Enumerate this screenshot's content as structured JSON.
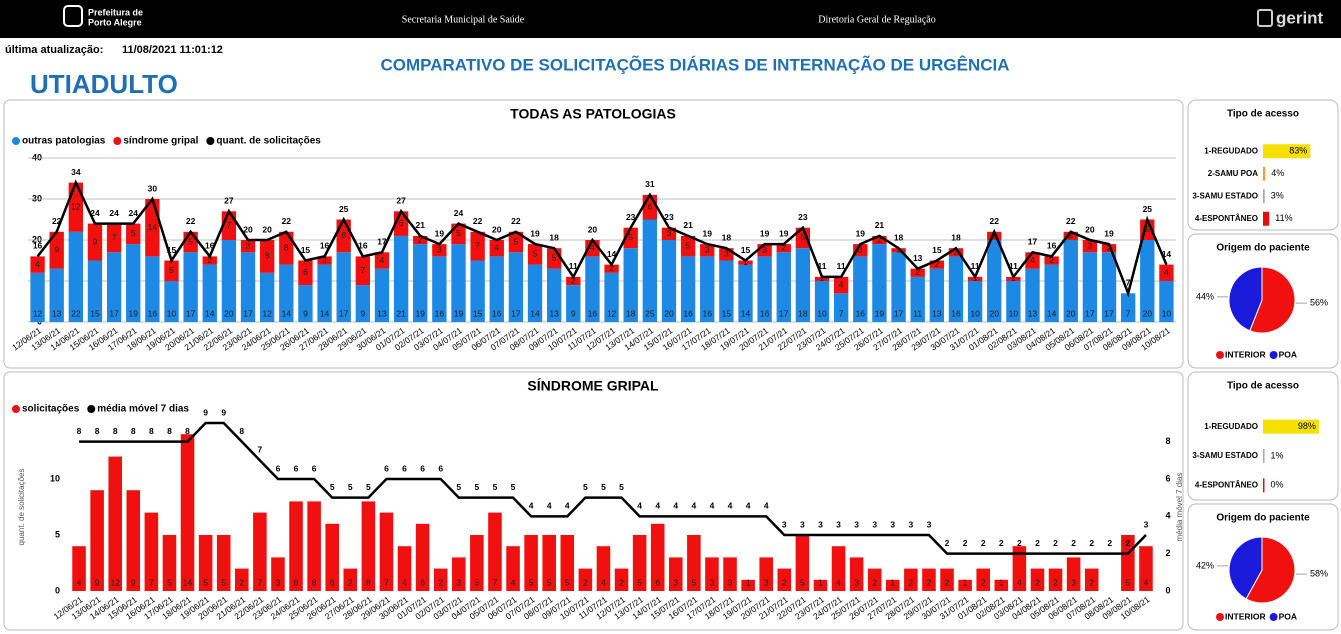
{
  "header": {
    "logo_lines": [
      "Prefeitura de",
      "Porto Alegre"
    ],
    "secretaria": "Secretaria Municipal de Saúde",
    "diretoria": "Diretoria Geral de Regulação",
    "brand": "gerint"
  },
  "update": {
    "label": "última atualização:",
    "value": "11/08/2021 11:01:12"
  },
  "title": "COMPARATIVO DE SOLICITAÇÕES DIÁRIAS DE INTERNAÇÃO DE URGÊNCIA",
  "unit": "UTIADULTO",
  "chart_data": [
    {
      "type": "bar",
      "title": "TODAS AS PATOLOGIAS",
      "stacked": true,
      "grid": true,
      "categories": [
        "12/06/21",
        "13/06/21",
        "14/06/21",
        "15/06/21",
        "16/06/21",
        "17/06/21",
        "18/06/21",
        "19/06/21",
        "20/06/21",
        "21/06/21",
        "22/06/21",
        "23/06/21",
        "24/06/21",
        "25/06/21",
        "26/06/21",
        "27/06/21",
        "28/06/21",
        "29/06/21",
        "30/06/21",
        "01/07/21",
        "02/07/21",
        "03/07/21",
        "04/07/21",
        "05/07/21",
        "06/07/21",
        "07/07/21",
        "08/07/21",
        "09/07/21",
        "10/07/21",
        "11/07/21",
        "12/07/21",
        "13/07/21",
        "14/07/21",
        "15/07/21",
        "16/07/21",
        "17/07/21",
        "18/07/21",
        "19/07/21",
        "20/07/21",
        "21/07/21",
        "22/07/21",
        "23/07/21",
        "24/07/21",
        "25/07/21",
        "26/07/21",
        "27/07/21",
        "28/07/21",
        "29/07/21",
        "30/07/21",
        "31/07/21",
        "01/08/21",
        "02/08/21",
        "03/08/21",
        "04/08/21",
        "05/08/21",
        "06/08/21",
        "07/08/21",
        "08/08/21",
        "09/08/21",
        "10/08/21"
      ],
      "series": [
        {
          "name": "outras patologias",
          "color": "#1e88e5",
          "type": "bar",
          "values": [
            12,
            13,
            22,
            15,
            17,
            19,
            16,
            10,
            17,
            14,
            20,
            17,
            12,
            14,
            9,
            14,
            17,
            9,
            13,
            21,
            19,
            16,
            19,
            15,
            16,
            17,
            14,
            13,
            9,
            16,
            12,
            18,
            25,
            20,
            16,
            16,
            15,
            14,
            16,
            17,
            18,
            10,
            7,
            16,
            19,
            17,
            11,
            13,
            16,
            10,
            20,
            10,
            13,
            14,
            20,
            17,
            17,
            7,
            20,
            10
          ]
        },
        {
          "name": "síndrome gripal",
          "color": "#f01010",
          "type": "bar",
          "values": [
            4,
            9,
            12,
            9,
            7,
            5,
            14,
            5,
            5,
            2,
            7,
            3,
            8,
            8,
            6,
            2,
            8,
            7,
            4,
            6,
            2,
            3,
            5,
            7,
            4,
            5,
            5,
            5,
            2,
            4,
            2,
            5,
            6,
            3,
            5,
            3,
            3,
            1,
            3,
            2,
            5,
            1,
            4,
            3,
            2,
            1,
            2,
            2,
            2,
            1,
            2,
            1,
            4,
            2,
            2,
            3,
            2,
            0,
            5,
            4
          ]
        },
        {
          "name": "quant. de solicitações",
          "color": "#000000",
          "type": "line",
          "values": [
            16,
            22,
            34,
            24,
            24,
            24,
            30,
            15,
            22,
            16,
            27,
            20,
            20,
            22,
            15,
            16,
            25,
            16,
            17,
            27,
            21,
            19,
            24,
            22,
            20,
            22,
            19,
            18,
            11,
            20,
            14,
            23,
            31,
            23,
            21,
            19,
            18,
            15,
            19,
            19,
            23,
            11,
            11,
            19,
            21,
            18,
            13,
            15,
            18,
            11,
            22,
            11,
            17,
            16,
            22,
            20,
            19,
            7,
            25,
            14
          ]
        }
      ],
      "ylim": [
        0,
        40
      ],
      "yticks": [
        0,
        10,
        20,
        30,
        40
      ]
    },
    {
      "type": "bar",
      "title": "SÍNDROME GRIPAL",
      "y_label": "quant. de solicitações",
      "y2_label": "média móvel 7 dias",
      "categories": [
        "12/06/21",
        "13/06/21",
        "14/06/21",
        "15/06/21",
        "16/06/21",
        "17/06/21",
        "18/06/21",
        "19/06/21",
        "20/06/21",
        "21/06/21",
        "22/06/21",
        "23/06/21",
        "24/06/21",
        "25/06/21",
        "26/06/21",
        "27/06/21",
        "28/06/21",
        "29/06/21",
        "30/06/21",
        "01/07/21",
        "02/07/21",
        "03/07/21",
        "04/07/21",
        "05/07/21",
        "06/07/21",
        "07/07/21",
        "08/07/21",
        "09/07/21",
        "10/07/21",
        "11/07/21",
        "12/07/21",
        "13/07/21",
        "14/07/21",
        "15/07/21",
        "16/07/21",
        "17/07/21",
        "18/07/21",
        "19/07/21",
        "20/07/21",
        "21/07/21",
        "22/07/21",
        "23/07/21",
        "24/07/21",
        "25/07/21",
        "26/07/21",
        "27/07/21",
        "28/07/21",
        "29/07/21",
        "30/07/21",
        "31/07/21",
        "01/08/21",
        "02/08/21",
        "03/08/21",
        "04/08/21",
        "05/08/21",
        "06/08/21",
        "07/08/21",
        "08/08/21",
        "09/08/21",
        "10/08/21"
      ],
      "series": [
        {
          "name": "solicitações",
          "color": "#f01010",
          "type": "bar",
          "values": [
            4,
            9,
            12,
            9,
            7,
            5,
            14,
            5,
            5,
            2,
            7,
            3,
            8,
            8,
            6,
            2,
            8,
            7,
            4,
            6,
            2,
            3,
            5,
            7,
            4,
            5,
            5,
            5,
            2,
            4,
            2,
            5,
            6,
            3,
            5,
            3,
            3,
            1,
            3,
            2,
            5,
            1,
            4,
            3,
            2,
            1,
            2,
            2,
            2,
            1,
            2,
            1,
            4,
            2,
            2,
            3,
            2,
            0,
            5,
            4
          ]
        },
        {
          "name": "média móvel 7 dias",
          "color": "#000000",
          "type": "line",
          "axis": "y2",
          "values": [
            8,
            8,
            8,
            8,
            8,
            8,
            8,
            9,
            9,
            8,
            7,
            6,
            6,
            6,
            5,
            5,
            5,
            6,
            6,
            6,
            6,
            5,
            5,
            5,
            5,
            4,
            4,
            4,
            5,
            5,
            5,
            4,
            4,
            4,
            4,
            4,
            4,
            4,
            4,
            3,
            3,
            3,
            3,
            3,
            3,
            3,
            3,
            3,
            2,
            2,
            2,
            2,
            2,
            2,
            2,
            2,
            2,
            2,
            2,
            3
          ]
        }
      ],
      "ylim": [
        0,
        15
      ],
      "yticks": [
        0,
        5,
        10
      ],
      "y2lim": [
        0,
        9
      ],
      "y2ticks": [
        0,
        2,
        4,
        6,
        8
      ]
    },
    {
      "type": "hbar",
      "title": "Tipo de acesso",
      "categories": [
        "1-REGUDADO",
        "2-SAMU POA",
        "3-SAMU ESTADO",
        "4-ESPONTÂNEO"
      ],
      "values": [
        83,
        4,
        3,
        11
      ],
      "value_labels": [
        "83%",
        "4%",
        "3%",
        "11%"
      ],
      "colors": [
        "#f5e000",
        "#f0a030",
        "#a89ee0",
        "#e01010"
      ],
      "xlim": [
        0,
        100
      ]
    },
    {
      "type": "pie",
      "title": "Origem do paciente",
      "categories": [
        "INTERIOR",
        "POA"
      ],
      "values": [
        56,
        44
      ],
      "value_labels": [
        "56%",
        "44%"
      ],
      "colors": [
        "#f01010",
        "#1a1adb"
      ]
    },
    {
      "type": "hbar",
      "title": "Tipo de acesso",
      "categories": [
        "1-REGUDADO",
        "3-SAMU ESTADO",
        "4-ESPONTÂNEO"
      ],
      "values": [
        98,
        1,
        0
      ],
      "value_labels": [
        "98%",
        "1%",
        "0%"
      ],
      "colors": [
        "#f5e000",
        "#a89ee0",
        "#e01010"
      ],
      "xlim": [
        0,
        100
      ]
    },
    {
      "type": "pie",
      "title": "Origem do paciente",
      "categories": [
        "INTERIOR",
        "POA"
      ],
      "values": [
        58,
        42
      ],
      "value_labels": [
        "58%",
        "42%"
      ],
      "colors": [
        "#f01010",
        "#1a1adb"
      ]
    }
  ]
}
